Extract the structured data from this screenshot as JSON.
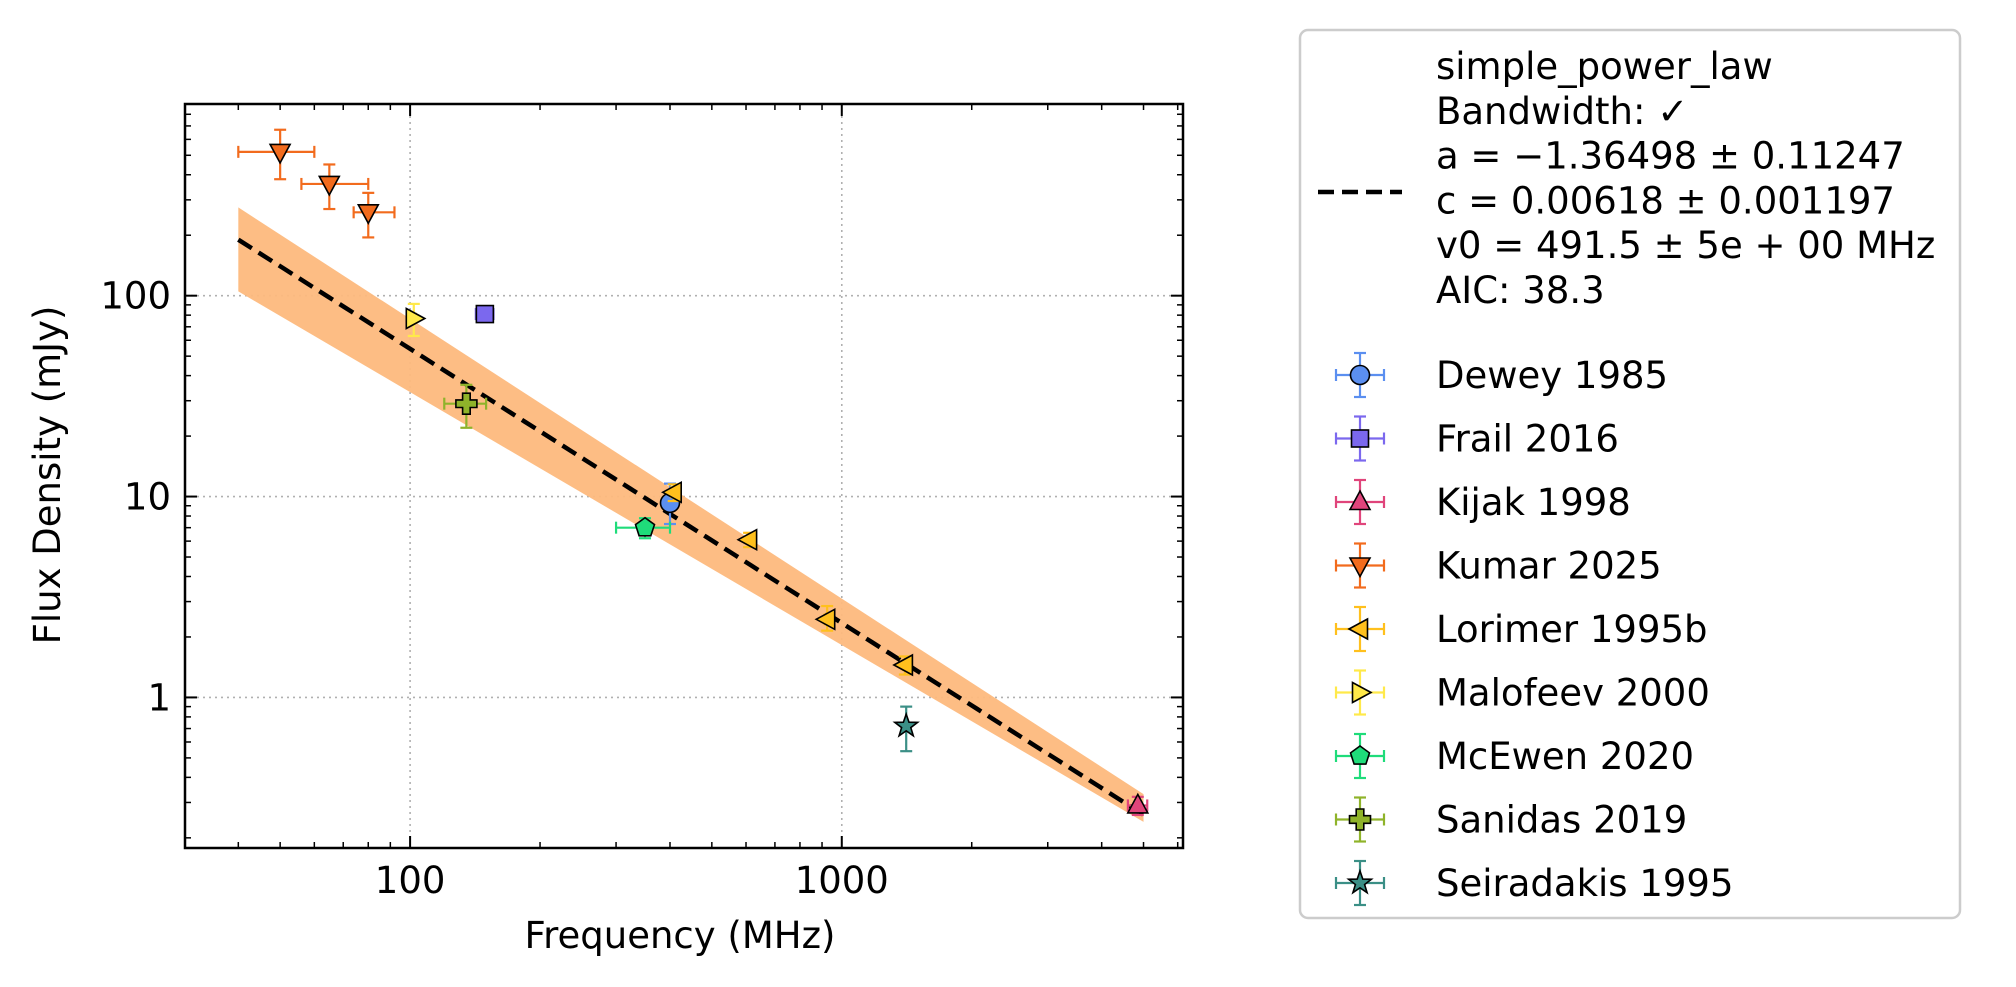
{
  "chart_data": {
    "type": "scatter",
    "xlabel": "Frequency (MHz)",
    "ylabel": "Flux Density (mJy)",
    "xscale": "log",
    "yscale": "log",
    "xlim": [
      30.1,
      6172
    ],
    "ylim": [
      0.178,
      900
    ],
    "grid": true,
    "legend_position": "outside-right",
    "x_ticks": [
      {
        "value": 100,
        "label": "100"
      },
      {
        "value": 1000,
        "label": "1000"
      }
    ],
    "y_ticks": [
      {
        "value": 1,
        "label": "1"
      },
      {
        "value": 10,
        "label": "10"
      },
      {
        "value": 100,
        "label": "100"
      }
    ],
    "fit": {
      "name": "simple_power_law",
      "legend_lines": [
        "simple_power_law",
        "Bandwidth: ✓",
        "a = −1.36498 ± 0.11247",
        "c = 0.00618 ± 0.001197",
        "v0 = 491.5 ± 5e + 00 MHz",
        "AIC: 38.3"
      ],
      "a": -1.36498,
      "c": 0.00618,
      "v0": 491.5,
      "x_range": [
        40,
        5000
      ],
      "y_at_start": 190,
      "band_upper": [
        [
          40,
          275
        ],
        [
          5000,
          0.33
        ]
      ],
      "band_lower": [
        [
          40,
          105
        ],
        [
          5000,
          0.24
        ]
      ],
      "line_color": "#000000",
      "band_color": "#fdb97d"
    },
    "series": [
      {
        "name": "Dewey 1985",
        "marker": "circle",
        "color": "#5b8ff0",
        "points": [
          {
            "x": 400,
            "y": 9.3,
            "xerr": [
              15,
              15
            ],
            "yerr": [
              2.0,
              2.3
            ]
          }
        ]
      },
      {
        "name": "Frail 2016",
        "marker": "square",
        "color": "#7b68ee",
        "points": [
          {
            "x": 149,
            "y": 81,
            "xerr": [
              7,
              7
            ],
            "yerr": [
              6,
              6
            ]
          }
        ]
      },
      {
        "name": "Kijak 1998",
        "marker": "triangle-up",
        "color": "#e0457b",
        "points": [
          {
            "x": 4850,
            "y": 0.29,
            "xerr": [
              250,
              250
            ],
            "yerr": [
              0.03,
              0.03
            ]
          }
        ]
      },
      {
        "name": "Kumar 2025",
        "marker": "triangle-down",
        "color": "#f26b1d",
        "points": [
          {
            "x": 50,
            "y": 520,
            "xerr": [
              10,
              10
            ],
            "yerr": [
              140,
              150
            ]
          },
          {
            "x": 65,
            "y": 360,
            "xerr": [
              9,
              15
            ],
            "yerr": [
              90,
              90
            ]
          },
          {
            "x": 80,
            "y": 260,
            "xerr": [
              6,
              12
            ],
            "yerr": [
              65,
              65
            ]
          }
        ]
      },
      {
        "name": "Lorimer 1995b",
        "marker": "triangle-left",
        "color": "#ffc01d",
        "points": [
          {
            "x": 408,
            "y": 10.5,
            "xerr": [
              6,
              6
            ],
            "yerr": [
              1.0,
              1.0
            ]
          },
          {
            "x": 610,
            "y": 6.1,
            "xerr": [
              5,
              5
            ],
            "yerr": [
              0.5,
              0.5
            ]
          },
          {
            "x": 925,
            "y": 2.45,
            "xerr": [
              12,
              12
            ],
            "yerr": [
              0.3,
              0.4
            ]
          },
          {
            "x": 1400,
            "y": 1.45,
            "xerr": [
              15,
              15
            ],
            "yerr": [
              0.15,
              0.15
            ]
          }
        ]
      },
      {
        "name": "Malofeev 2000",
        "marker": "triangle-right",
        "color": "#ffe94a",
        "points": [
          {
            "x": 102,
            "y": 77,
            "xerr": [
              1,
              1
            ],
            "yerr": [
              14,
              14
            ]
          }
        ]
      },
      {
        "name": "McEwen 2020",
        "marker": "pentagon",
        "color": "#1fdc7a",
        "points": [
          {
            "x": 350,
            "y": 7.0,
            "xerr": [
              50,
              50
            ],
            "yerr": [
              0.8,
              0.8
            ]
          }
        ]
      },
      {
        "name": "Sanidas 2019",
        "marker": "plus",
        "color": "#8fb32a",
        "points": [
          {
            "x": 135,
            "y": 29,
            "xerr": [
              15,
              15
            ],
            "yerr": [
              7,
              7
            ]
          }
        ]
      },
      {
        "name": "Seiradakis 1995",
        "marker": "star",
        "color": "#3b8f86",
        "points": [
          {
            "x": 1410,
            "y": 0.72,
            "xerr": [
              0,
              0
            ],
            "yerr": [
              0.18,
              0.18
            ]
          }
        ]
      }
    ]
  }
}
